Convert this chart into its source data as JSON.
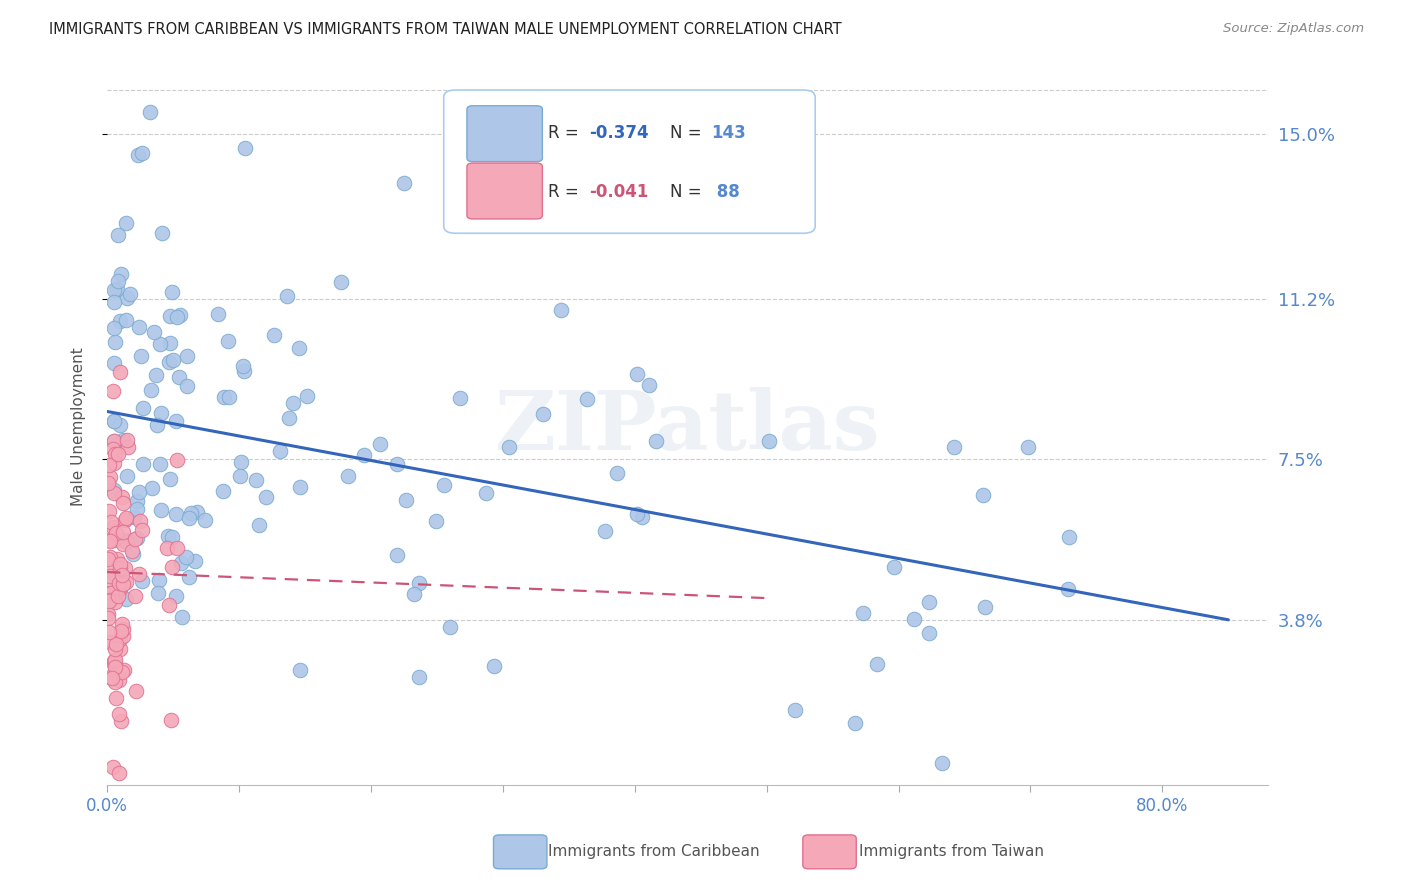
{
  "title": "IMMIGRANTS FROM CARIBBEAN VS IMMIGRANTS FROM TAIWAN MALE UNEMPLOYMENT CORRELATION CHART",
  "source": "Source: ZipAtlas.com",
  "ylabel": "Male Unemployment",
  "ytick_labels": [
    "15.0%",
    "11.2%",
    "7.5%",
    "3.8%"
  ],
  "ytick_values": [
    0.15,
    0.112,
    0.075,
    0.038
  ],
  "ymin": 0.0,
  "ymax": 0.165,
  "xmin": 0.0,
  "xmax": 0.88,
  "legend1_R": "-0.374",
  "legend1_N": "143",
  "legend2_R": "-0.041",
  "legend2_N": " 88",
  "caribbean_color": "#aec6e8",
  "taiwan_color": "#f4a8b8",
  "caribbean_edge": "#7aaad0",
  "taiwan_edge": "#e07090",
  "trend_caribbean_color": "#3366bb",
  "trend_taiwan_color": "#cc5577",
  "background_color": "#ffffff",
  "grid_color": "#cccccc",
  "title_color": "#222222",
  "label_color": "#5588cc",
  "watermark": "ZIPatlas",
  "carib_trend_x0": 0.0,
  "carib_trend_x1": 0.85,
  "carib_trend_y0": 0.086,
  "carib_trend_y1": 0.038,
  "taiwan_trend_x0": 0.0,
  "taiwan_trend_x1": 0.5,
  "taiwan_trend_y0": 0.049,
  "taiwan_trend_y1": 0.043
}
